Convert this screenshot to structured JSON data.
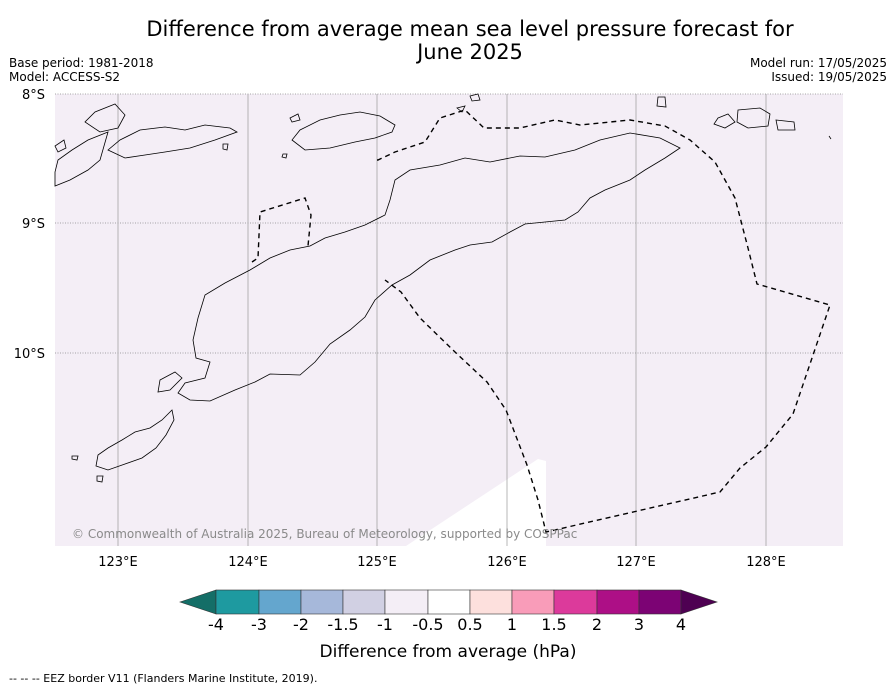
{
  "header": {
    "title_line1": "Difference from average mean sea level pressure forecast for",
    "title_line2": "June 2025",
    "base_period": "Base period: 1981-2018",
    "model": "Model: ACCESS-S2",
    "model_run": "Model run: 17/05/2025",
    "issued": "Issued: 19/05/2025"
  },
  "map": {
    "background_color": "#f4eef6",
    "lat_labels": [
      "8°S",
      "9°S",
      "10°S"
    ],
    "lon_labels": [
      "123°E",
      "124°E",
      "125°E",
      "126°E",
      "127°E",
      "128°E"
    ],
    "copyright": "© Commonwealth of Australia 2025, Bureau of Meteorology, supported by COSPPac"
  },
  "colorbar": {
    "title": "Difference from average (hPa)",
    "tick_labels": [
      "-4",
      "-3",
      "-2",
      "-1.5",
      "-1",
      "-0.5",
      "0.5",
      "1",
      "1.5",
      "2",
      "3",
      "4"
    ],
    "colors": [
      "#146e67",
      "#1e9aa0",
      "#64a6ce",
      "#a6b8da",
      "#d1d0e3",
      "#f4eef6",
      "#ffffff",
      "#fde0dd",
      "#f99cb9",
      "#dc3a9b",
      "#ad0f86",
      "#7c0374",
      "#4e0152"
    ]
  },
  "footer": {
    "legend": "--  --  -- EEZ border V11 (Flanders Marine Institute, 2019)."
  }
}
